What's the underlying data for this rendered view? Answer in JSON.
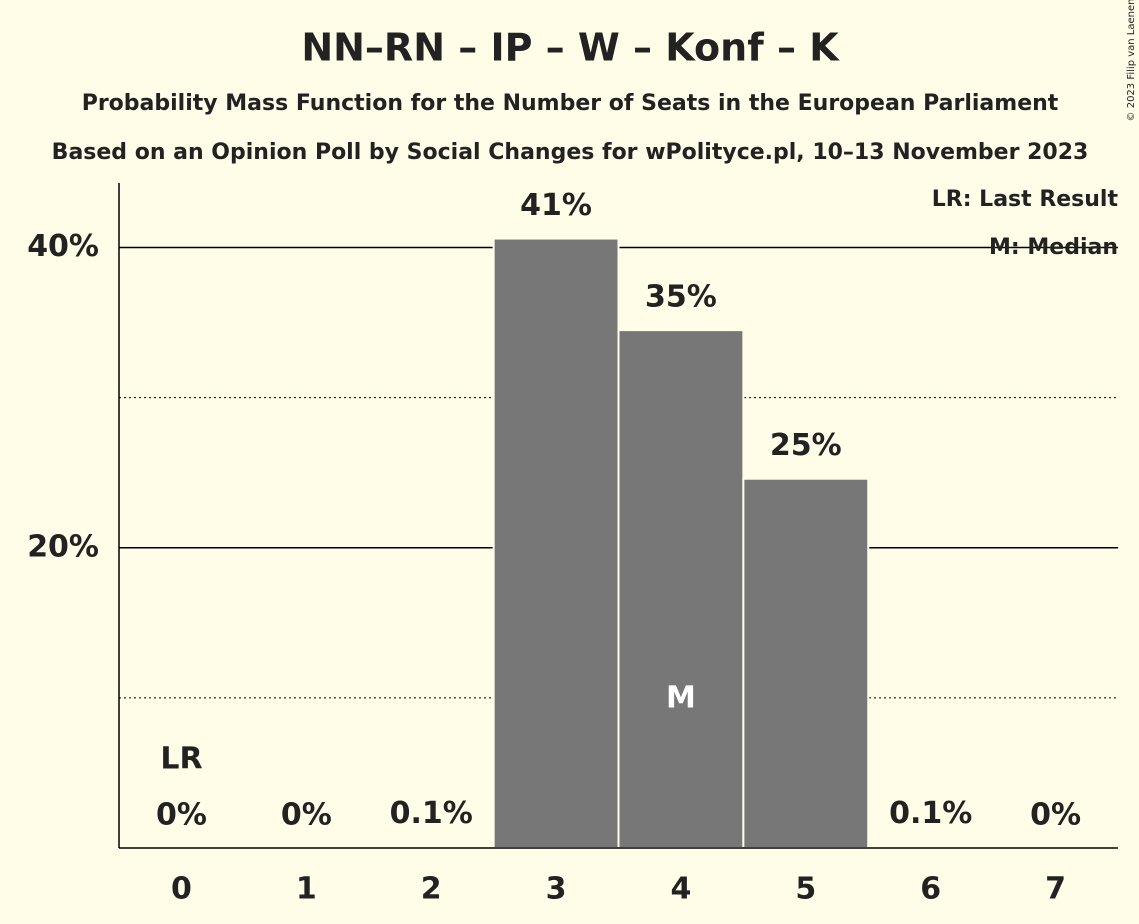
{
  "chart_data": {
    "type": "bar",
    "title": "NN–RN – IP – W – Konf – K",
    "subtitle": "Probability Mass Function for the Number of Seats in the European Parliament",
    "source": "Based on an Opinion Poll by Social Changes for wPolityce.pl, 10–13 November 2023",
    "copyright": "© 2023 Filip van Laenen",
    "categories": [
      "0",
      "1",
      "2",
      "3",
      "4",
      "5",
      "6",
      "7"
    ],
    "values": [
      0,
      0,
      0.1,
      40.6,
      34.5,
      24.6,
      0.1,
      0
    ],
    "value_labels": [
      "0%",
      "0%",
      "0.1%",
      "41%",
      "35%",
      "25%",
      "0.1%",
      "0%"
    ],
    "color": "#777777",
    "ylim": [
      0,
      44.3
    ],
    "yticks": [
      {
        "value": 20,
        "label": "20%"
      },
      {
        "value": 40,
        "label": "40%"
      }
    ],
    "minor_yticks": [
      10,
      30
    ],
    "grid": true,
    "markers": [
      {
        "label": "LR",
        "category": "0",
        "place": "above"
      },
      {
        "label": "M",
        "category": "4",
        "place": "inside"
      }
    ],
    "legend": [
      "LR: Last Result",
      "M: Median"
    ],
    "legend_position": "top-right"
  }
}
